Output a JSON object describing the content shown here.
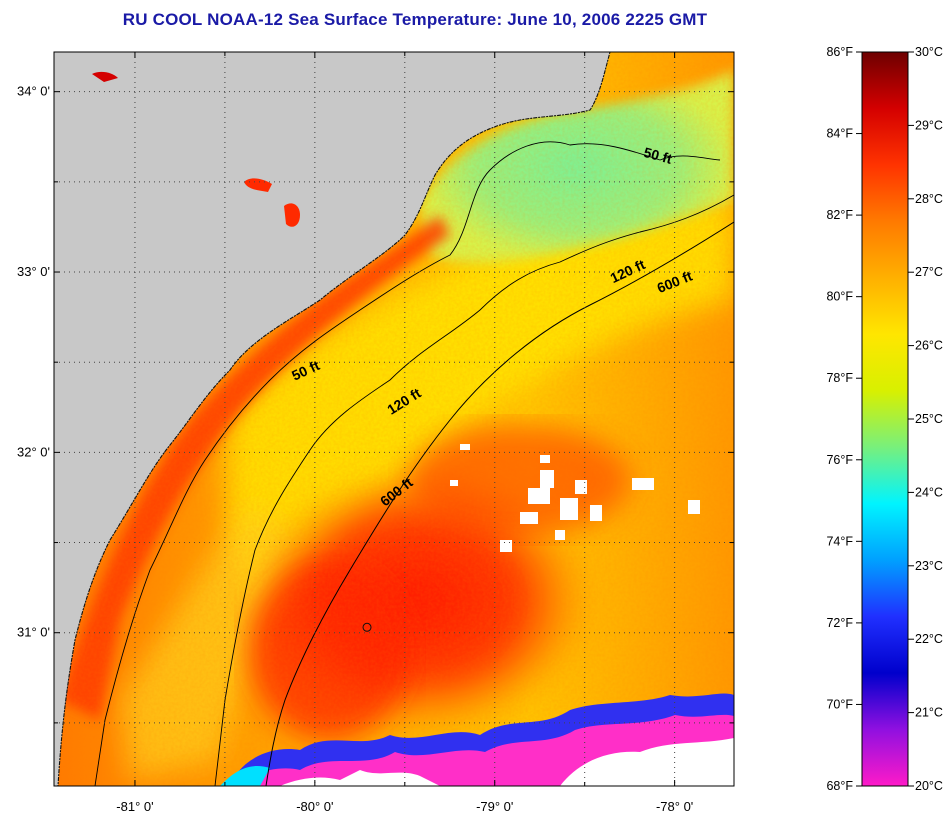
{
  "title": "RU COOL  NOAA-12  Sea Surface Temperature:  June 10, 2006 2225 GMT",
  "map": {
    "lat_range": [
      30.15,
      34.22
    ],
    "lon_range": [
      -81.45,
      -77.67
    ],
    "lat_ticks": [
      {
        "value": 34,
        "label": "34° 0'"
      },
      {
        "value": 33,
        "label": "33° 0'"
      },
      {
        "value": 32,
        "label": "32° 0'"
      },
      {
        "value": 31,
        "label": "31° 0'"
      }
    ],
    "lon_ticks": [
      {
        "value": -81,
        "label": "-81° 0'"
      },
      {
        "value": -80,
        "label": "-80° 0'"
      },
      {
        "value": -79,
        "label": "-79° 0'"
      },
      {
        "value": -78,
        "label": "-78° 0'"
      }
    ],
    "grid": "dotted",
    "colors": {
      "land": "#c8c8c8",
      "cloud": "#ffffff",
      "warm_red": "#ff2a00",
      "orange": "#ff8c00",
      "yellow": "#ffe400",
      "green": "#7ff08a",
      "magenta": "#ff33cc",
      "blue": "#2222ee"
    },
    "contour_labels": [
      {
        "text": "50 ft",
        "lon": -80.04,
        "lat": 32.43,
        "angle": -25
      },
      {
        "text": "50 ft",
        "lon": -78.1,
        "lat": 33.62,
        "angle": 15
      },
      {
        "text": "120 ft",
        "lon": -79.49,
        "lat": 32.26,
        "angle": -32
      },
      {
        "text": "120 ft",
        "lon": -78.25,
        "lat": 32.98,
        "angle": -25
      },
      {
        "text": "600 ft",
        "lon": -79.53,
        "lat": 31.76,
        "angle": -38
      },
      {
        "text": "600 ft",
        "lon": -77.99,
        "lat": 32.92,
        "angle": -22
      }
    ],
    "station_marker": {
      "lon": -79.71,
      "lat": 31.03
    }
  },
  "colorbar": {
    "fahrenheit_labels": [
      "86°F",
      "84°F",
      "82°F",
      "80°F",
      "78°F",
      "76°F",
      "74°F",
      "72°F",
      "70°F",
      "68°F"
    ],
    "celsius_labels": [
      "30°C",
      "29°C",
      "28°C",
      "27°C",
      "26°C",
      "25°C",
      "24°C",
      "23°C",
      "22°C",
      "21°C",
      "20°C"
    ],
    "stops": [
      "#6e0000",
      "#d40000",
      "#ff3300",
      "#ff7a00",
      "#ffb000",
      "#ffe600",
      "#d8f000",
      "#78f07c",
      "#00f4ff",
      "#00a0ff",
      "#2030ff",
      "#0000cc",
      "#9010e0",
      "#ff1ac8"
    ]
  }
}
